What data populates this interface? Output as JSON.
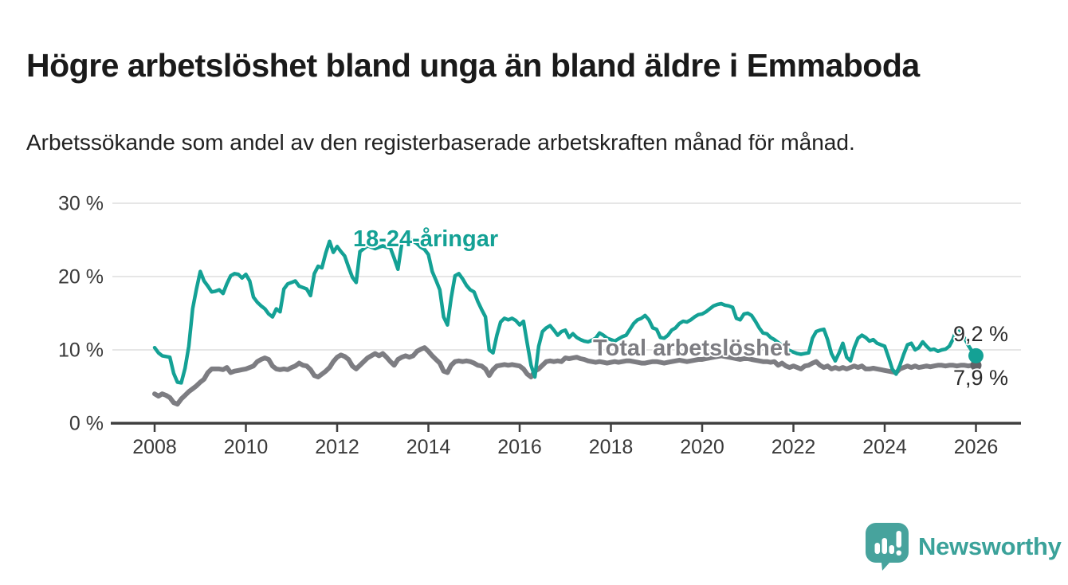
{
  "header": {
    "title": "Högre arbetslöshet bland unga än bland äldre i Emmaboda",
    "subtitle": "Arbetssökande som andel av den registerbaserade arbetskraften månad för månad."
  },
  "chart_data": {
    "type": "line",
    "unit": "%",
    "frequency": "monthly",
    "x_start": "2008-01",
    "x_end": "2026-01",
    "ylim": [
      0,
      32
    ],
    "grid": "horizontal",
    "colors": {
      "youth": "#14A195",
      "total": "#7D7D82",
      "total_dot": "#636367",
      "axis": "#3F3F3F",
      "gridline": "#DEDEDE",
      "tick_text": "#3A3A3A"
    },
    "y_ticks": [
      {
        "value": 0,
        "label": "0 %"
      },
      {
        "value": 10,
        "label": "10 %"
      },
      {
        "value": 20,
        "label": "20 %"
      },
      {
        "value": 30,
        "label": "30 %"
      }
    ],
    "x_ticks": [
      {
        "year": 2008,
        "label": "2008"
      },
      {
        "year": 2010,
        "label": "2010"
      },
      {
        "year": 2012,
        "label": "2012"
      },
      {
        "year": 2014,
        "label": "2014"
      },
      {
        "year": 2016,
        "label": "2016"
      },
      {
        "year": 2018,
        "label": "2018"
      },
      {
        "year": 2020,
        "label": "2020"
      },
      {
        "year": 2022,
        "label": "2022"
      },
      {
        "year": 2024,
        "label": "2024"
      },
      {
        "year": 2026,
        "label": "2026"
      }
    ],
    "series": [
      {
        "name": "18-24-åringar",
        "color": "#14A195",
        "dot_color": "#14A195",
        "end_label": "9,2 %",
        "end_value": 9.2,
        "values": [
          10.3,
          9.6,
          9.2,
          9.1,
          9.0,
          6.8,
          5.6,
          5.5,
          7.5,
          10.5,
          15.6,
          18.3,
          20.7,
          19.4,
          18.7,
          17.9,
          18.0,
          18.2,
          17.7,
          19.0,
          20.1,
          20.4,
          20.3,
          19.8,
          20.3,
          19.4,
          17.2,
          16.5,
          16.0,
          15.6,
          14.9,
          14.5,
          15.6,
          15.2,
          18.3,
          19.0,
          19.2,
          19.4,
          18.7,
          18.5,
          18.3,
          17.4,
          20.4,
          21.4,
          21.2,
          23.2,
          24.8,
          23.3,
          24.1,
          23.4,
          22.8,
          21.3,
          19.9,
          19.2,
          23.4,
          23.8,
          24.2,
          24.0,
          23.8,
          24.0,
          24.2,
          24.0,
          23.9,
          22.5,
          21.0,
          24.5,
          25.0,
          25.2,
          24.8,
          24.5,
          24.0,
          23.7,
          23.0,
          20.7,
          19.5,
          18.2,
          14.5,
          13.4,
          17.1,
          20.1,
          20.4,
          19.7,
          18.8,
          18.2,
          17.9,
          16.6,
          15.5,
          14.5,
          10.0,
          9.6,
          12.0,
          13.8,
          14.3,
          14.1,
          14.3,
          14.0,
          13.4,
          13.9,
          10.9,
          7.9,
          6.3,
          10.5,
          12.5,
          13.0,
          13.3,
          12.7,
          12.0,
          12.5,
          12.7,
          11.7,
          12.2,
          11.7,
          11.4,
          11.2,
          11.1,
          11.3,
          11.6,
          12.3,
          12.0,
          11.6,
          11.4,
          11.2,
          11.5,
          11.8,
          12.0,
          12.8,
          13.6,
          14.1,
          14.3,
          14.7,
          14.1,
          13.0,
          12.8,
          11.7,
          11.6,
          12.0,
          12.7,
          13.0,
          13.6,
          13.9,
          13.8,
          14.1,
          14.5,
          14.8,
          14.9,
          15.2,
          15.6,
          16.0,
          16.2,
          16.3,
          16.1,
          16.0,
          15.8,
          14.3,
          14.1,
          14.9,
          15.0,
          14.7,
          13.9,
          13.0,
          12.3,
          12.2,
          11.7,
          11.4,
          11.0,
          10.6,
          10.2,
          9.9,
          9.7,
          9.5,
          9.4,
          9.5,
          9.6,
          11.6,
          12.5,
          12.7,
          12.8,
          11.4,
          9.5,
          8.5,
          9.6,
          10.9,
          9.0,
          8.5,
          10.3,
          11.6,
          12.0,
          11.7,
          11.2,
          11.4,
          10.9,
          10.7,
          10.5,
          9.0,
          7.4,
          6.7,
          7.9,
          9.4,
          10.7,
          10.9,
          10.0,
          10.3,
          11.1,
          10.5,
          10.0,
          10.1,
          9.8,
          10.0,
          10.1,
          10.5,
          11.5,
          13.0,
          12.6,
          11.6,
          10.6,
          9.8,
          9.2
        ]
      },
      {
        "name": "Total arbetslöshet",
        "color": "#7D7D82",
        "dot_color": "#636367",
        "end_label": "7,9 %",
        "end_value": 7.9,
        "values": [
          4.0,
          3.7,
          4.0,
          3.8,
          3.5,
          2.8,
          2.6,
          3.3,
          3.8,
          4.3,
          4.7,
          5.1,
          5.6,
          6.0,
          6.9,
          7.4,
          7.4,
          7.4,
          7.3,
          7.6,
          6.9,
          7.1,
          7.2,
          7.3,
          7.4,
          7.6,
          7.8,
          8.4,
          8.7,
          8.9,
          8.7,
          7.8,
          7.4,
          7.3,
          7.4,
          7.3,
          7.6,
          7.8,
          8.2,
          7.9,
          7.8,
          7.3,
          6.5,
          6.3,
          6.7,
          7.1,
          7.6,
          8.4,
          9.0,
          9.3,
          9.1,
          8.7,
          7.8,
          7.4,
          7.9,
          8.4,
          8.9,
          9.2,
          9.5,
          9.2,
          9.5,
          9.0,
          8.4,
          7.9,
          8.7,
          9.0,
          9.2,
          9.0,
          9.2,
          9.8,
          10.1,
          10.3,
          9.8,
          9.2,
          8.7,
          8.2,
          7.1,
          6.9,
          7.9,
          8.4,
          8.5,
          8.4,
          8.5,
          8.4,
          8.2,
          7.9,
          7.8,
          7.4,
          6.5,
          7.3,
          7.8,
          7.9,
          8.0,
          7.9,
          8.0,
          7.9,
          7.8,
          7.4,
          6.7,
          6.3,
          7.1,
          7.4,
          7.9,
          8.4,
          8.5,
          8.4,
          8.5,
          8.4,
          8.9,
          8.8,
          8.9,
          9.0,
          8.8,
          8.7,
          8.5,
          8.4,
          8.3,
          8.4,
          8.3,
          8.2,
          8.3,
          8.4,
          8.3,
          8.4,
          8.5,
          8.5,
          8.4,
          8.3,
          8.2,
          8.2,
          8.3,
          8.4,
          8.4,
          8.3,
          8.2,
          8.3,
          8.4,
          8.5,
          8.6,
          8.5,
          8.4,
          8.5,
          8.6,
          8.7,
          8.7,
          8.8,
          8.9,
          9.0,
          9.1,
          9.2,
          9.1,
          9.0,
          8.9,
          8.8,
          8.7,
          8.8,
          8.8,
          8.7,
          8.6,
          8.5,
          8.4,
          8.4,
          8.3,
          8.4,
          7.9,
          8.2,
          7.8,
          7.6,
          7.8,
          7.6,
          7.4,
          7.8,
          7.9,
          8.2,
          8.4,
          7.9,
          7.6,
          7.8,
          7.4,
          7.6,
          7.4,
          7.6,
          7.4,
          7.6,
          7.8,
          7.6,
          7.8,
          7.4,
          7.4,
          7.5,
          7.4,
          7.3,
          7.2,
          7.1,
          7.0,
          6.9,
          7.4,
          7.6,
          7.8,
          7.6,
          7.8,
          7.6,
          7.7,
          7.8,
          7.7,
          7.8,
          7.9,
          7.9,
          7.8,
          7.9,
          7.9,
          7.8,
          7.9,
          7.9,
          7.8,
          7.9,
          7.9
        ]
      }
    ]
  },
  "footer": {
    "brand": "Newsworthy"
  }
}
